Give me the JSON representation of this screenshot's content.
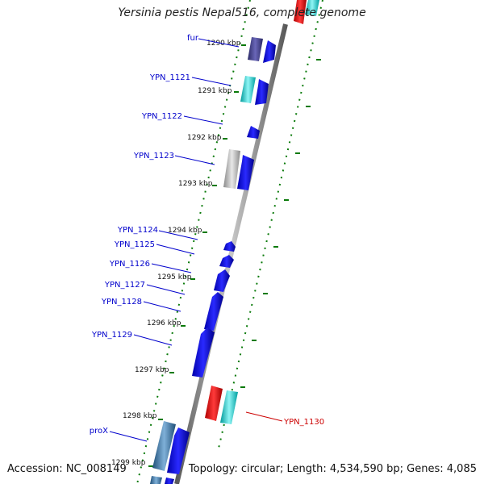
{
  "title": "Yersinia pestis Nepal516, complete genome",
  "footer": {
    "accession": "Accession: NC_008149",
    "summary": "Topology: circular; Length: 4,534,590 bp; Genes: 4,085"
  },
  "colors": {
    "forward_cds": "#0000ee",
    "label_blue": "#0000cc",
    "label_red": "#cc0000",
    "tick_green": "#0a7a0a",
    "backbone_grey": "#808080",
    "cyan_feature": "#00cccc",
    "red_feature": "#ee0000",
    "purple_feature": "#3f3d8f",
    "grey_feature": "#b8b8b8",
    "steel_feature": "#3a78aa"
  },
  "scale_labels": [
    "1290 kbp",
    "1291 kbp",
    "1292 kbp",
    "1293 kbp",
    "1294 kbp",
    "1295 kbp",
    "1296 kbp",
    "1297 kbp",
    "1298 kbp",
    "1299 kbp"
  ],
  "gene_labels": [
    {
      "text": "fur",
      "color": "blue"
    },
    {
      "text": "YPN_1121",
      "color": "blue"
    },
    {
      "text": "YPN_1122",
      "color": "blue"
    },
    {
      "text": "YPN_1123",
      "color": "blue"
    },
    {
      "text": "YPN_1124",
      "color": "blue"
    },
    {
      "text": "YPN_1125",
      "color": "blue"
    },
    {
      "text": "YPN_1126",
      "color": "blue"
    },
    {
      "text": "YPN_1127",
      "color": "blue"
    },
    {
      "text": "YPN_1128",
      "color": "blue"
    },
    {
      "text": "YPN_1129",
      "color": "blue"
    },
    {
      "text": "proX",
      "color": "blue"
    },
    {
      "text": "YPN_1130",
      "color": "red"
    }
  ]
}
